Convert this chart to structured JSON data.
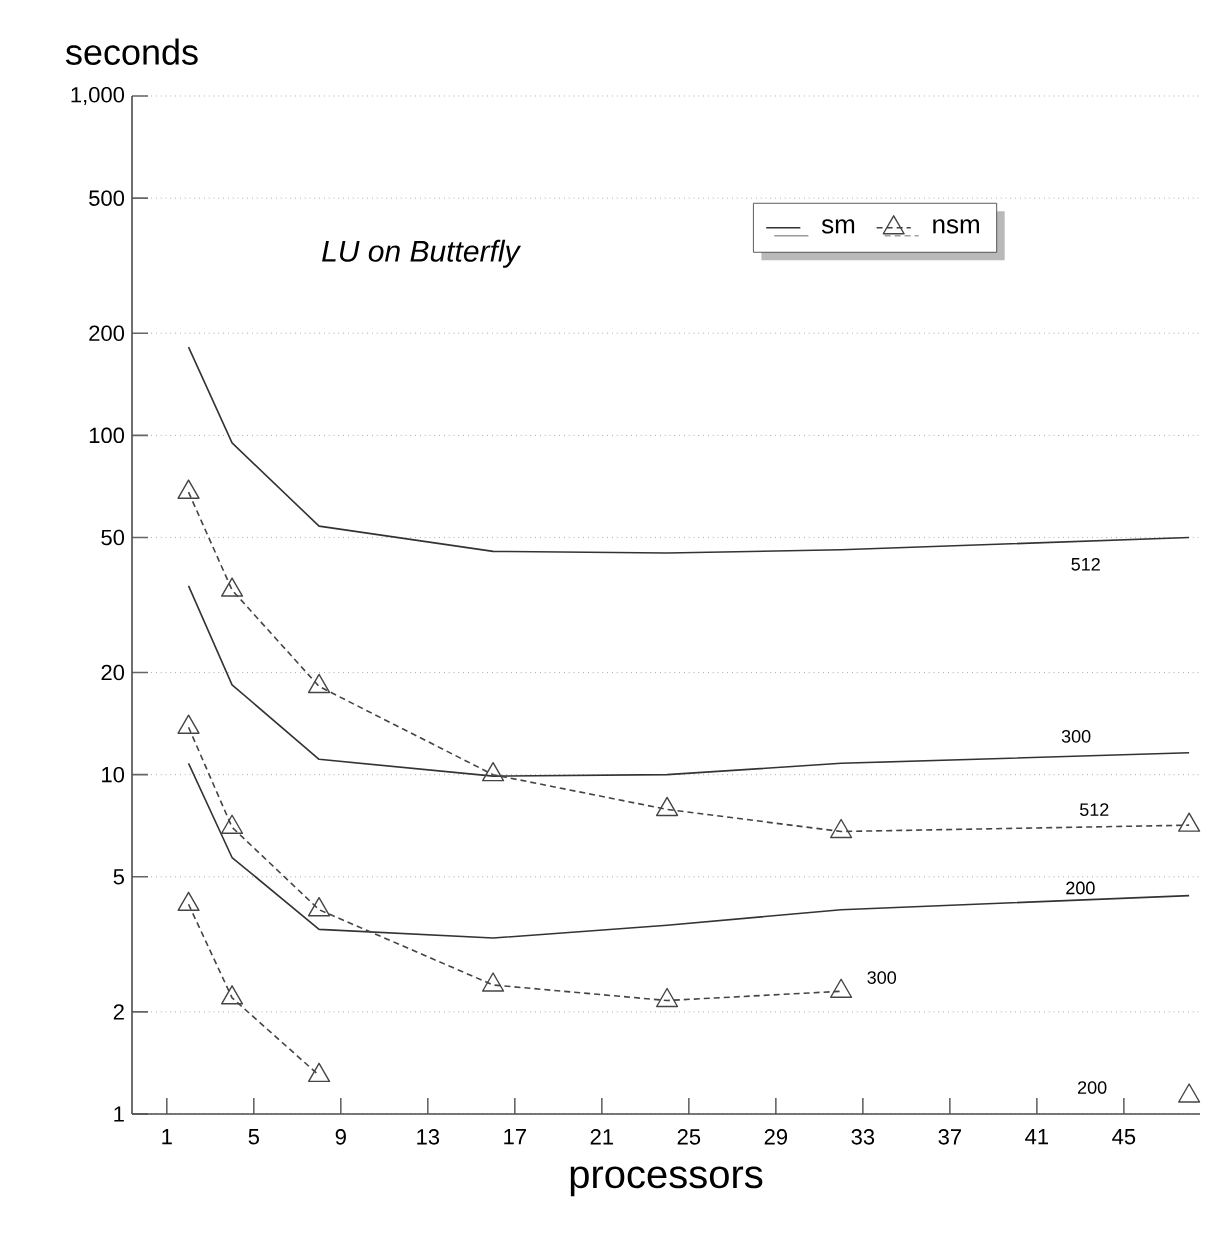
{
  "chart_data": {
    "type": "line",
    "title": "LU on Butterfly",
    "xlabel": "processors",
    "ylabel": "seconds",
    "x": [
      2,
      4,
      8,
      16,
      24,
      32,
      48
    ],
    "series": [
      {
        "name": "sm",
        "color": "#333333",
        "line_style": "solid",
        "marker": "none",
        "values": [
          182,
          95,
          54,
          45.5,
          45,
          46,
          50
        ]
      },
      {
        "color": "#333333",
        "line_style": "solid",
        "marker": "none",
        "values": [
          36,
          18.4,
          11.1,
          9.9,
          10,
          10.8,
          11.6
        ]
      },
      {
        "color": "#333333",
        "line_style": "solid",
        "marker": "none",
        "values": [
          10.8,
          5.7,
          3.5,
          3.3,
          3.6,
          4,
          4.4
        ]
      },
      {
        "name": "nsm",
        "color": "#444444",
        "line_style": "dashed",
        "marker": "triangle",
        "values": [
          68,
          35,
          18.2,
          10,
          7.9,
          6.8,
          7.1
        ]
      },
      {
        "color": "#444444",
        "line_style": "dashed",
        "marker": "triangle",
        "values": [
          13.8,
          7,
          4,
          2.4,
          2.16,
          2.3,
          null
        ]
      },
      {
        "color": "#444444",
        "line_style": "dashed",
        "marker": "triangle",
        "values": [
          4.15,
          2.2,
          1.3,
          null,
          null,
          null,
          1.13
        ]
      }
    ],
    "annotations": [
      "512",
      "300",
      "512",
      "200",
      "300",
      "200"
    ],
    "log": "y",
    "grid": "y",
    "legend": "top right",
    "xlim": [
      -0.6,
      48.5
    ],
    "ylim": [
      1,
      1000
    ],
    "xticks": [
      1,
      5,
      9,
      13,
      17,
      21,
      25,
      29,
      33,
      37,
      41,
      45
    ],
    "yticks": [
      1,
      2,
      5,
      10,
      20,
      50,
      100,
      200,
      500,
      {
        "value": 1000,
        "label": "1,000"
      }
    ]
  }
}
